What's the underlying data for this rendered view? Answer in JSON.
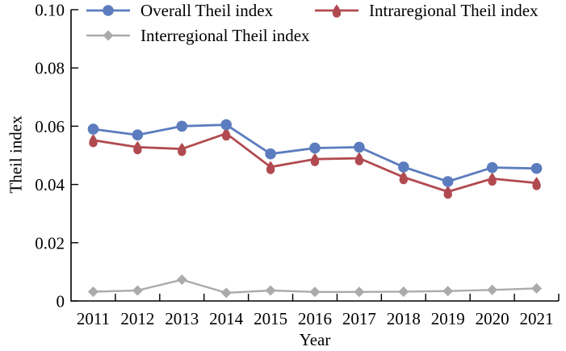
{
  "chart_data": {
    "type": "line",
    "title": "",
    "xlabel": "Year",
    "ylabel": "Theil index",
    "categories": [
      "2011",
      "2012",
      "2013",
      "2014",
      "2015",
      "2016",
      "2017",
      "2018",
      "2019",
      "2020",
      "2021"
    ],
    "ylim": [
      0,
      0.1
    ],
    "yticks": [
      0,
      0.02,
      0.04,
      0.06,
      0.08,
      0.1
    ],
    "ytick_labels": [
      "0",
      "0.02",
      "0.04",
      "0.06",
      "0.08",
      "0.10"
    ],
    "grid": false,
    "legend_position": "top-left-inside, two rows",
    "axis_color": "#000000",
    "series": [
      {
        "name": "Overall Theil index",
        "marker": "circle",
        "color": "#5b7cbe",
        "values": [
          0.059,
          0.057,
          0.06,
          0.0605,
          0.0505,
          0.0525,
          0.0528,
          0.046,
          0.041,
          0.0458,
          0.0455
        ]
      },
      {
        "name": "Intraregional Theil index",
        "marker": "drop",
        "color": "#b14a50",
        "values": [
          0.0552,
          0.0528,
          0.0522,
          0.0575,
          0.046,
          0.0487,
          0.049,
          0.0425,
          0.0375,
          0.042,
          0.0405
        ]
      },
      {
        "name": "Interregional Theil index",
        "marker": "diamond",
        "color": "#ababab",
        "values": [
          0.0032,
          0.0036,
          0.0073,
          0.0028,
          0.0036,
          0.0031,
          0.0031,
          0.0032,
          0.0034,
          0.0038,
          0.0043
        ]
      }
    ]
  }
}
